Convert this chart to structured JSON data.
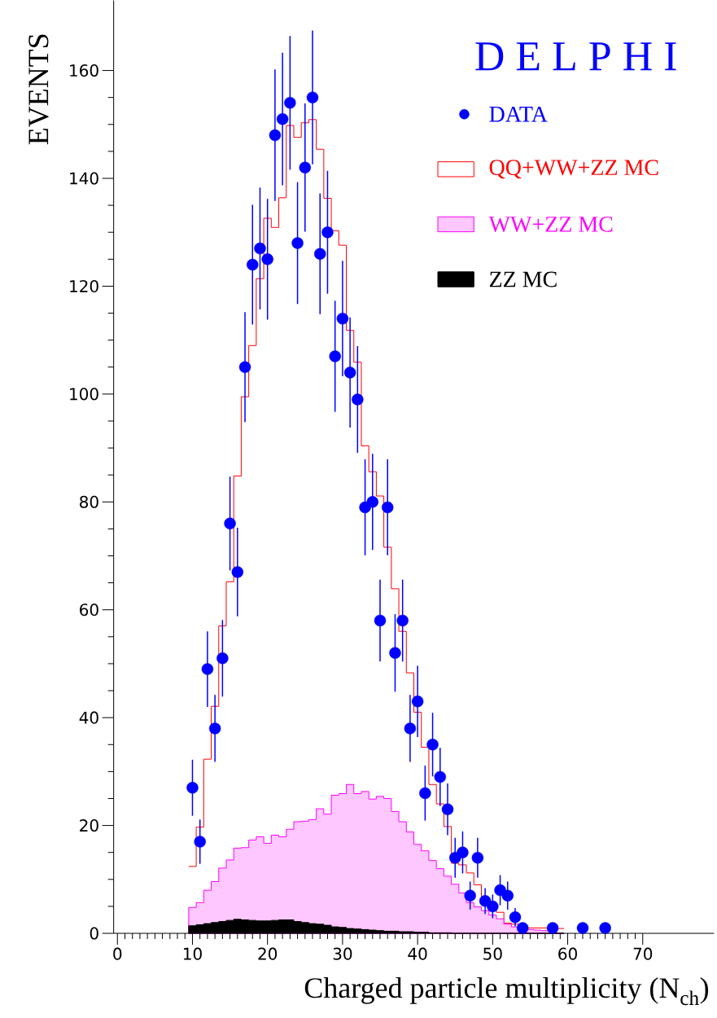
{
  "chart_data": {
    "type": "histogram",
    "title": "D E L P H I",
    "xlabel": "Charged particle multiplicity (N$_{ch}$)",
    "ylabel": "EVENTS",
    "xlim": [
      -0.5,
      79.5
    ],
    "ylim": [
      0,
      173
    ],
    "xticks": [
      0,
      10,
      20,
      30,
      40,
      50,
      60,
      70
    ],
    "yticks": [
      0,
      20,
      40,
      60,
      80,
      100,
      120,
      140,
      160
    ],
    "grid": false,
    "legend": "top right",
    "bins": [
      9.5,
      10.5,
      11.5,
      12.5,
      13.5,
      14.5,
      15.5,
      16.5,
      17.5,
      18.5,
      19.5,
      20.5,
      21.5,
      22.5,
      23.5,
      24.5,
      25.5,
      26.5,
      27.5,
      28.5,
      29.5,
      30.5,
      31.5,
      32.5,
      33.5,
      34.5,
      35.5,
      36.5,
      37.5,
      38.5,
      39.5,
      40.5,
      41.5,
      42.5,
      43.5,
      44.5,
      45.5,
      46.5,
      47.5,
      48.5,
      49.5,
      50.5,
      51.5,
      52.5,
      53.5,
      54.5,
      55.5,
      56.5,
      57.5,
      58.5,
      59.5
    ],
    "series": [
      {
        "name": "DATA",
        "type": "scatter",
        "color": "#0000ff",
        "marker": "circle",
        "x": [
          10,
          11,
          12,
          13,
          14,
          15,
          16,
          17,
          18,
          19,
          20,
          21,
          22,
          23,
          24,
          25,
          26,
          27,
          28,
          29,
          30,
          31,
          32,
          33,
          34,
          35,
          36,
          37,
          38,
          39,
          40,
          41,
          42,
          43,
          44,
          45,
          46,
          47,
          48,
          49,
          50,
          51,
          52,
          53,
          54,
          58,
          62,
          65
        ],
        "values": [
          27,
          17,
          49,
          38,
          51,
          76,
          67,
          105,
          124,
          127,
          125,
          148,
          151,
          154,
          128,
          142,
          155,
          126,
          130,
          107,
          114,
          104,
          99,
          79,
          80,
          58,
          79,
          52,
          58,
          38,
          43,
          26,
          35,
          29,
          23,
          14,
          15,
          7,
          14,
          6,
          5,
          8,
          7,
          3,
          1,
          1,
          1,
          1
        ],
        "errors": [
          5.2,
          4.1,
          7.0,
          6.2,
          7.1,
          8.7,
          8.2,
          10.2,
          11.1,
          11.3,
          11.2,
          12.2,
          12.3,
          12.4,
          11.3,
          11.9,
          12.4,
          11.2,
          11.4,
          10.3,
          10.7,
          10.2,
          9.9,
          8.9,
          8.9,
          7.6,
          8.9,
          7.2,
          7.6,
          6.2,
          6.6,
          5.1,
          5.9,
          5.4,
          4.8,
          3.7,
          3.9,
          2.6,
          3.7,
          2.4,
          2.2,
          2.8,
          2.6,
          1.7,
          1,
          1,
          1,
          1
        ]
      },
      {
        "name": "QQ+WW+ZZ MC",
        "color": "#ff0000",
        "values": [
          12.4,
          19.7,
          32.3,
          42.1,
          57.0,
          65.2,
          84.8,
          99.5,
          109.0,
          121.4,
          132.6,
          130.9,
          136.4,
          149.8,
          147.6,
          150.3,
          150.9,
          145.4,
          136.3,
          130.3,
          127.6,
          111.8,
          105.9,
          90.4,
          85.6,
          81.1,
          71.6,
          63.9,
          56.0,
          48.3,
          41.0,
          34.5,
          27.6,
          24.0,
          19.8,
          13.0,
          12.7,
          11.2,
          9.0,
          6.2,
          4.8,
          3.9,
          1.9,
          1.7,
          1.4,
          1.0,
          1.0,
          1.0,
          0.9,
          0.9
        ]
      },
      {
        "name": "WW+ZZ MC",
        "color": "#ff00ff",
        "values": [
          4.8,
          5.7,
          8.0,
          9.6,
          12.1,
          13.6,
          15.8,
          15.9,
          17.3,
          17.9,
          16.7,
          18.2,
          17.9,
          19.3,
          20.7,
          20.8,
          21.1,
          23.1,
          22.1,
          25.6,
          25.9,
          27.6,
          25.9,
          26.3,
          24.9,
          25.4,
          25.0,
          22.6,
          20.7,
          18.8,
          16.5,
          15.3,
          13.5,
          12.0,
          10.6,
          9.1,
          7.5,
          5.7,
          4.9,
          4.2,
          3.4,
          2.7,
          1.7,
          1.2,
          0.8,
          0.7,
          0.6,
          0.5,
          0.4,
          0
        ]
      },
      {
        "name": "ZZ MC",
        "color": "#000000",
        "values": [
          1.4,
          1.6,
          1.8,
          2.0,
          2.2,
          2.4,
          2.6,
          2.5,
          2.4,
          2.3,
          2.3,
          2.4,
          2.5,
          2.5,
          2.2,
          2.0,
          1.8,
          1.7,
          1.5,
          1.2,
          1.1,
          0.9,
          0.8,
          0.7,
          0.6,
          0.5,
          0.4,
          0.4,
          0.3,
          0.3,
          0.2,
          0.2,
          0.1,
          0.1,
          0.1,
          0,
          0,
          0,
          0,
          0,
          0,
          0,
          0,
          0,
          0,
          0,
          0,
          0,
          0,
          0
        ]
      }
    ]
  }
}
